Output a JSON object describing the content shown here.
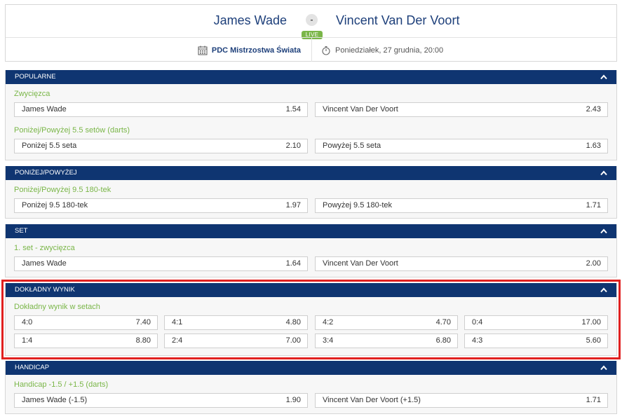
{
  "match": {
    "home": "James Wade",
    "away": "Vincent Van Der Voort",
    "vs": "-",
    "live": "LIVE",
    "competition": "PDC Mistrzostwa Świata",
    "datetime": "Poniedziałek, 27 grudnia, 20:00"
  },
  "icons": {
    "competition": "calendar-icon",
    "datetime": "stopwatch-icon",
    "collapse": "chevron-up-icon"
  },
  "colors": {
    "header": "#0f3571",
    "accent": "#7ab648",
    "highlight": "#e0201f",
    "team": "#1d3f7a"
  },
  "sections": [
    {
      "title": "POPULARNE",
      "groups": [
        {
          "title": "Zwycięzca",
          "rows": [
            [
              {
                "label": "James Wade",
                "odd": "1.54"
              },
              {
                "label": "Vincent Van Der Voort",
                "odd": "2.43"
              }
            ]
          ]
        },
        {
          "title": "Poniżej/Powyżej 5.5 setów (darts)",
          "rows": [
            [
              {
                "label": "Poniżej 5.5 seta",
                "odd": "2.10"
              },
              {
                "label": "Powyżej 5.5 seta",
                "odd": "1.63"
              }
            ]
          ]
        }
      ]
    },
    {
      "title": "PONIŻEJ/POWYŻEJ",
      "groups": [
        {
          "title": "Poniżej/Powyżej 9.5 180-tek",
          "rows": [
            [
              {
                "label": "Poniżej 9.5 180-tek",
                "odd": "1.97"
              },
              {
                "label": "Powyżej 9.5 180-tek",
                "odd": "1.71"
              }
            ]
          ]
        }
      ]
    },
    {
      "title": "SET",
      "groups": [
        {
          "title": "1. set - zwycięzca",
          "rows": [
            [
              {
                "label": "James Wade",
                "odd": "1.64"
              },
              {
                "label": "Vincent Van Der Voort",
                "odd": "2.00"
              }
            ]
          ]
        }
      ]
    },
    {
      "title": "DOKŁADNY WYNIK",
      "groups": [
        {
          "title": "Dokładny wynik w setach",
          "rows": [
            [
              {
                "label": "4:0",
                "odd": "7.40"
              },
              {
                "label": "4:1",
                "odd": "4.80"
              },
              {
                "label": "4:2",
                "odd": "4.70"
              },
              {
                "label": "0:4",
                "odd": "17.00"
              }
            ],
            [
              {
                "label": "1:4",
                "odd": "8.80"
              },
              {
                "label": "2:4",
                "odd": "7.00"
              },
              {
                "label": "3:4",
                "odd": "6.80"
              },
              {
                "label": "4:3",
                "odd": "5.60"
              }
            ]
          ]
        }
      ]
    },
    {
      "title": "HANDICAP",
      "groups": [
        {
          "title": "Handicap -1.5 / +1.5 (darts)",
          "rows": [
            [
              {
                "label": "James Wade (-1.5)",
                "odd": "1.90"
              },
              {
                "label": "Vincent Van Der Voort (+1.5)",
                "odd": "1.71"
              }
            ]
          ]
        }
      ]
    }
  ]
}
